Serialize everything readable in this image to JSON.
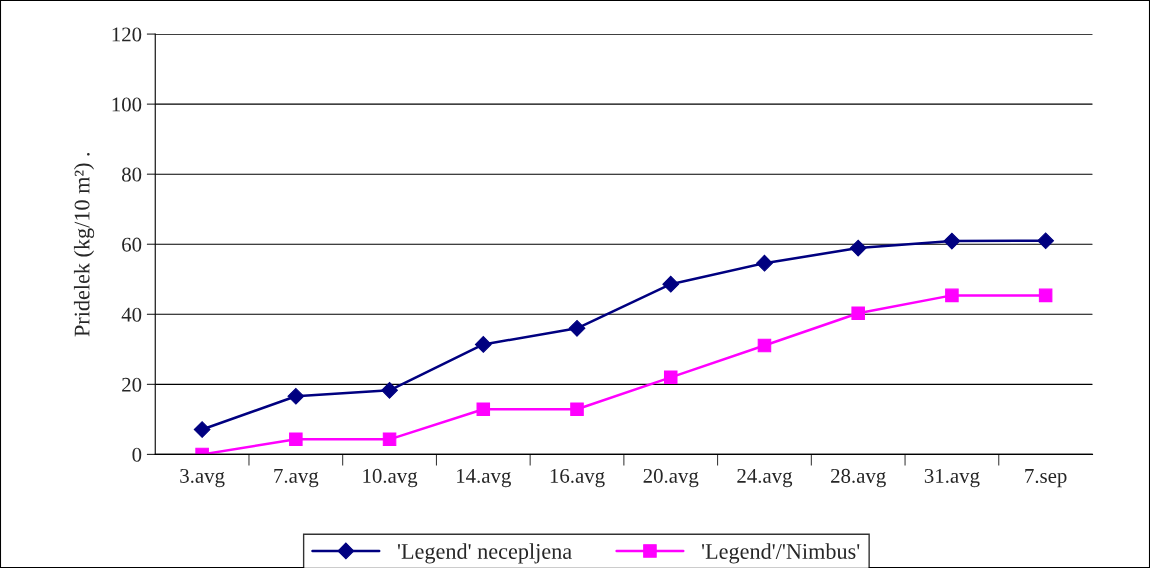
{
  "chart_data": {
    "type": "line",
    "ylabel": "Pridelek (kg/10 m²) .",
    "categories": [
      "3.avg",
      "7.avg",
      "10.avg",
      "14.avg",
      "16.avg",
      "20.avg",
      "24.avg",
      "28.avg",
      "31.avg",
      "7.sep"
    ],
    "series": [
      {
        "name": "'Legend' necepljena",
        "color": "#000080",
        "marker": "diamond",
        "values": [
          7.1,
          16.6,
          18.3,
          31.4,
          36,
          48.6,
          54.6,
          58.9,
          60.9,
          61
        ]
      },
      {
        "name": "'Legend'/'Nimbus'",
        "color": "#ff00ff",
        "marker": "square",
        "values": [
          0,
          4.3,
          4.3,
          12.9,
          12.9,
          22,
          31.1,
          40.3,
          45.4,
          45.4
        ]
      }
    ],
    "ylim": [
      0,
      120
    ],
    "yticks": [
      0,
      20,
      40,
      60,
      80,
      100,
      120
    ],
    "grid": "y",
    "legend": "bottom",
    "line_style": "solid"
  }
}
